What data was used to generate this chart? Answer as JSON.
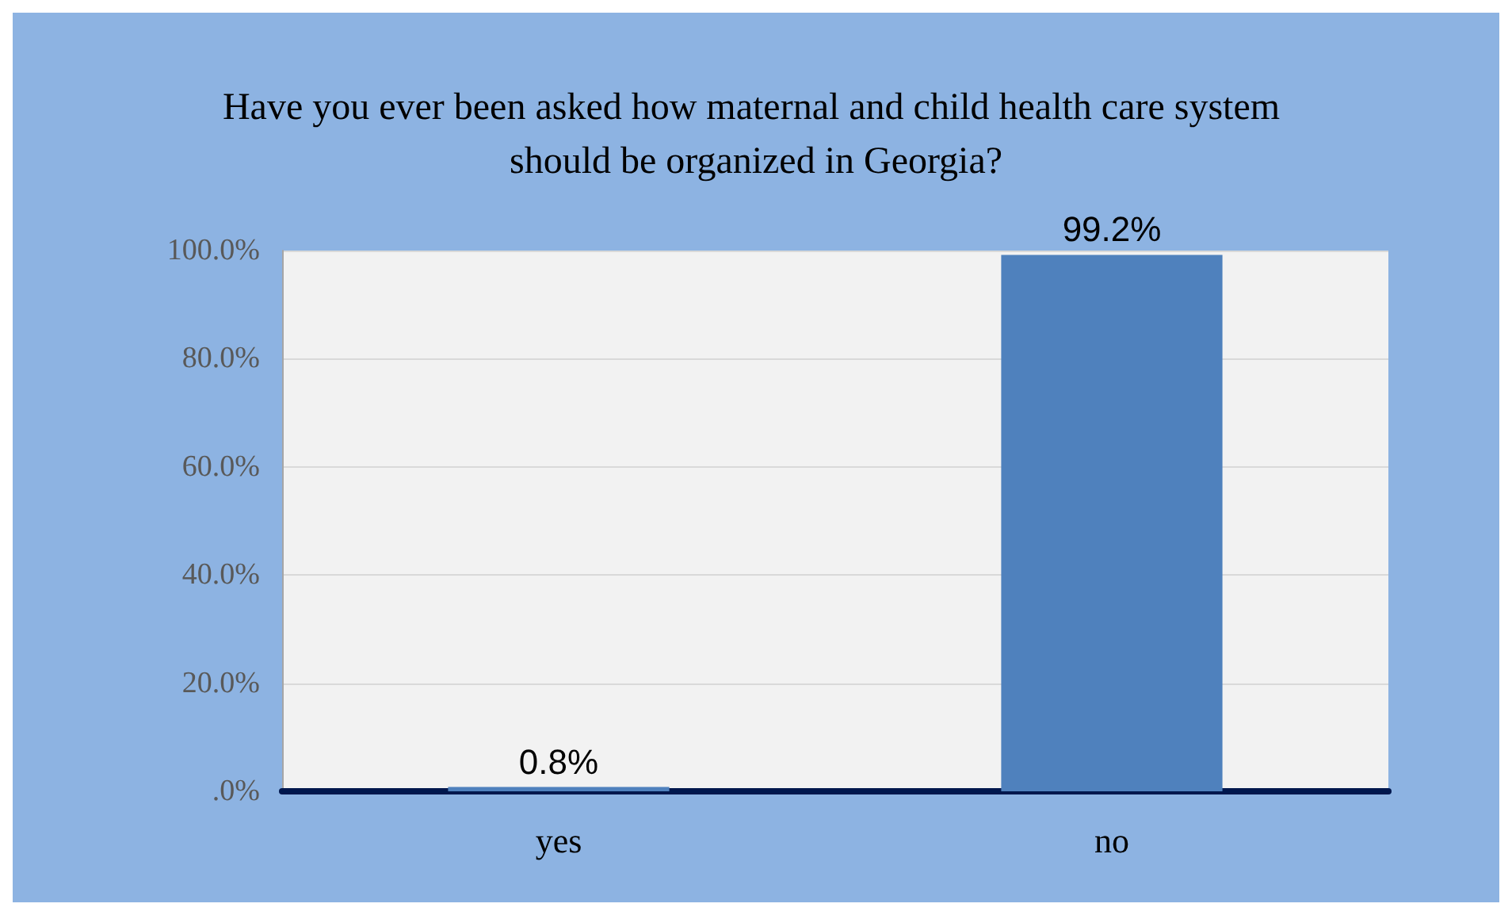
{
  "chart_data": {
    "type": "bar",
    "title": "Have you ever been asked how maternal and child health care system should be organized in Georgia?",
    "categories": [
      "yes",
      "no"
    ],
    "values": [
      0.8,
      99.2
    ],
    "color": "#4f81bd",
    "value_labels": [
      "0.8%",
      "99.2%"
    ],
    "ylim": [
      0,
      100
    ],
    "yticks": [
      {
        "value": 0,
        "label": ".0%"
      },
      {
        "value": 20,
        "label": "20.0%"
      },
      {
        "value": 40,
        "label": "40.0%"
      },
      {
        "value": 60,
        "label": "60.0%"
      },
      {
        "value": 80,
        "label": "80.0%"
      },
      {
        "value": 100,
        "label": "100.0%"
      }
    ],
    "grid": "y"
  }
}
